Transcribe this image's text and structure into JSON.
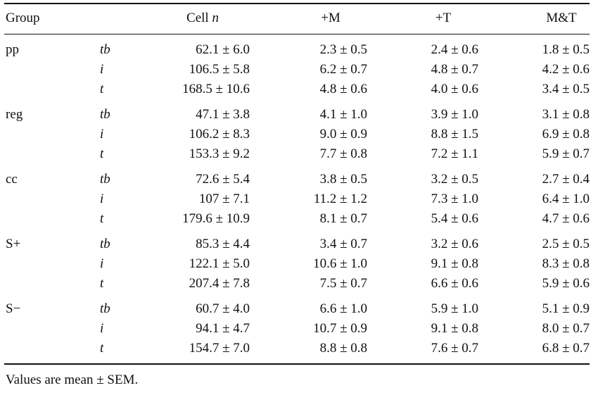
{
  "header": {
    "group": "Group",
    "cell_n": "Cell",
    "cell_n_var": "n",
    "plus_m": "+M",
    "plus_t": "+T",
    "m_and_t": "M&T"
  },
  "rows": [
    {
      "group": "pp",
      "sub": "tb",
      "cell_n": "62.1 ± 6.0",
      "plus_m": "2.3 ± 0.5",
      "plus_t": "2.4 ± 0.6",
      "m_and_t": "1.8 ± 0.5"
    },
    {
      "group": "",
      "sub": "i",
      "cell_n": "106.5 ± 5.8",
      "plus_m": "6.2 ± 0.7",
      "plus_t": "4.8 ± 0.7",
      "m_and_t": "4.2 ± 0.6"
    },
    {
      "group": "",
      "sub": "t",
      "cell_n": "168.5 ± 10.6",
      "plus_m": "4.8 ± 0.6",
      "plus_t": "4.0 ± 0.6",
      "m_and_t": "3.4 ± 0.5"
    },
    {
      "group": "reg",
      "sub": "tb",
      "cell_n": "47.1 ± 3.8",
      "plus_m": "4.1 ± 1.0",
      "plus_t": "3.9 ± 1.0",
      "m_and_t": "3.1 ± 0.8"
    },
    {
      "group": "",
      "sub": "i",
      "cell_n": "106.2 ± 8.3",
      "plus_m": "9.0 ± 0.9",
      "plus_t": "8.8 ± 1.5",
      "m_and_t": "6.9 ± 0.8"
    },
    {
      "group": "",
      "sub": "t",
      "cell_n": "153.3 ± 9.2",
      "plus_m": "7.7 ± 0.8",
      "plus_t": "7.2 ± 1.1",
      "m_and_t": "5.9 ± 0.7"
    },
    {
      "group": "cc",
      "sub": "tb",
      "cell_n": "72.6 ± 5.4",
      "plus_m": "3.8 ± 0.5",
      "plus_t": "3.2 ± 0.5",
      "m_and_t": "2.7 ± 0.4"
    },
    {
      "group": "",
      "sub": "i",
      "cell_n": "107 ± 7.1",
      "plus_m": "11.2 ± 1.2",
      "plus_t": "7.3 ± 1.0",
      "m_and_t": "6.4 ± 1.0"
    },
    {
      "group": "",
      "sub": "t",
      "cell_n": "179.6 ± 10.9",
      "plus_m": "8.1 ± 0.7",
      "plus_t": "5.4 ± 0.6",
      "m_and_t": "4.7 ± 0.6"
    },
    {
      "group": "S+",
      "sub": "tb",
      "cell_n": "85.3 ± 4.4",
      "plus_m": "3.4 ± 0.7",
      "plus_t": "3.2 ± 0.6",
      "m_and_t": "2.5 ± 0.5"
    },
    {
      "group": "",
      "sub": "i",
      "cell_n": "122.1 ± 5.0",
      "plus_m": "10.6 ± 1.0",
      "plus_t": "9.1 ± 0.8",
      "m_and_t": "8.3 ± 0.8"
    },
    {
      "group": "",
      "sub": "t",
      "cell_n": "207.4 ± 7.8",
      "plus_m": "7.5 ± 0.7",
      "plus_t": "6.6 ± 0.6",
      "m_and_t": "5.9 ± 0.6"
    },
    {
      "group": "S−",
      "sub": "tb",
      "cell_n": "60.7 ± 4.0",
      "plus_m": "6.6 ± 1.0",
      "plus_t": "5.9 ± 1.0",
      "m_and_t": "5.1 ± 0.9"
    },
    {
      "group": "",
      "sub": "i",
      "cell_n": "94.1 ± 4.7",
      "plus_m": "10.7 ± 0.9",
      "plus_t": "9.1 ± 0.8",
      "m_and_t": "8.0 ± 0.7"
    },
    {
      "group": "",
      "sub": "t",
      "cell_n": "154.7 ± 7.0",
      "plus_m": "8.8 ± 0.8",
      "plus_t": "7.6 ± 0.7",
      "m_and_t": "6.8 ± 0.7"
    }
  ],
  "footnote": "Values are mean ± SEM."
}
